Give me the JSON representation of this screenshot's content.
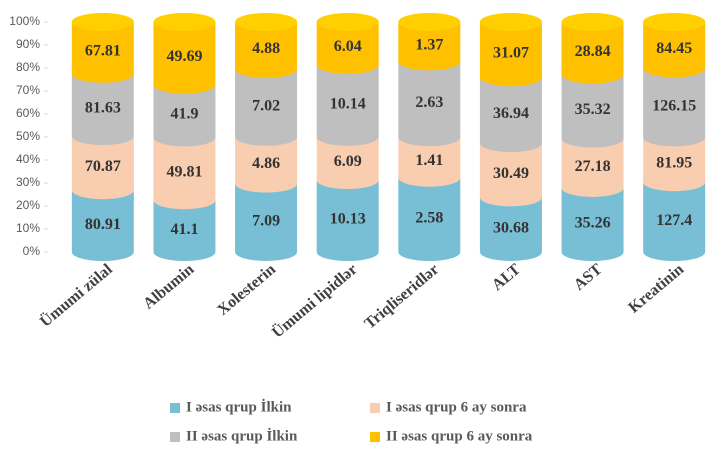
{
  "chart_data": {
    "type": "stacked_cylinder_percent",
    "categories": [
      "Ümumi zülal",
      "Albumin",
      "Xolesterin",
      "Ümumi lipidlər",
      "Triqliseridlər",
      "ALT",
      "AST",
      "Kreatinin"
    ],
    "series": [
      {
        "name": "I  əsas qrup  İlkin",
        "color": "#78bfd6",
        "values": [
          80.91,
          41.1,
          7.09,
          10.13,
          2.58,
          30.68,
          35.26,
          127.4
        ]
      },
      {
        "name": "I  əsas qrup  6 ay sonra",
        "color": "#f8cdb0",
        "values": [
          70.87,
          49.81,
          4.86,
          6.09,
          1.41,
          30.49,
          27.18,
          81.95
        ]
      },
      {
        "name": "II əsas qrup İlkin",
        "color": "#bfbfbf",
        "values": [
          81.63,
          41.9,
          7.02,
          10.14,
          2.63,
          36.94,
          35.32,
          126.15
        ]
      },
      {
        "name": "II əsas qrup 6 ay sonra",
        "color": "#ffc000",
        "values": [
          67.81,
          49.69,
          4.88,
          6.04,
          1.37,
          31.07,
          28.84,
          84.45
        ]
      }
    ],
    "ylim": [
      0,
      100
    ],
    "yticks": [
      {
        "value": 0,
        "label": "0%"
      },
      {
        "value": 10,
        "label": "10%"
      },
      {
        "value": 20,
        "label": "20%"
      },
      {
        "value": 30,
        "label": "30%"
      },
      {
        "value": 40,
        "label": "40%"
      },
      {
        "value": 50,
        "label": "50%"
      },
      {
        "value": 60,
        "label": "60%"
      },
      {
        "value": 70,
        "label": "70%"
      },
      {
        "value": 80,
        "label": "80%"
      },
      {
        "value": 90,
        "label": "90%"
      },
      {
        "value": 100,
        "label": "100%"
      }
    ],
    "legend": "bottom"
  }
}
